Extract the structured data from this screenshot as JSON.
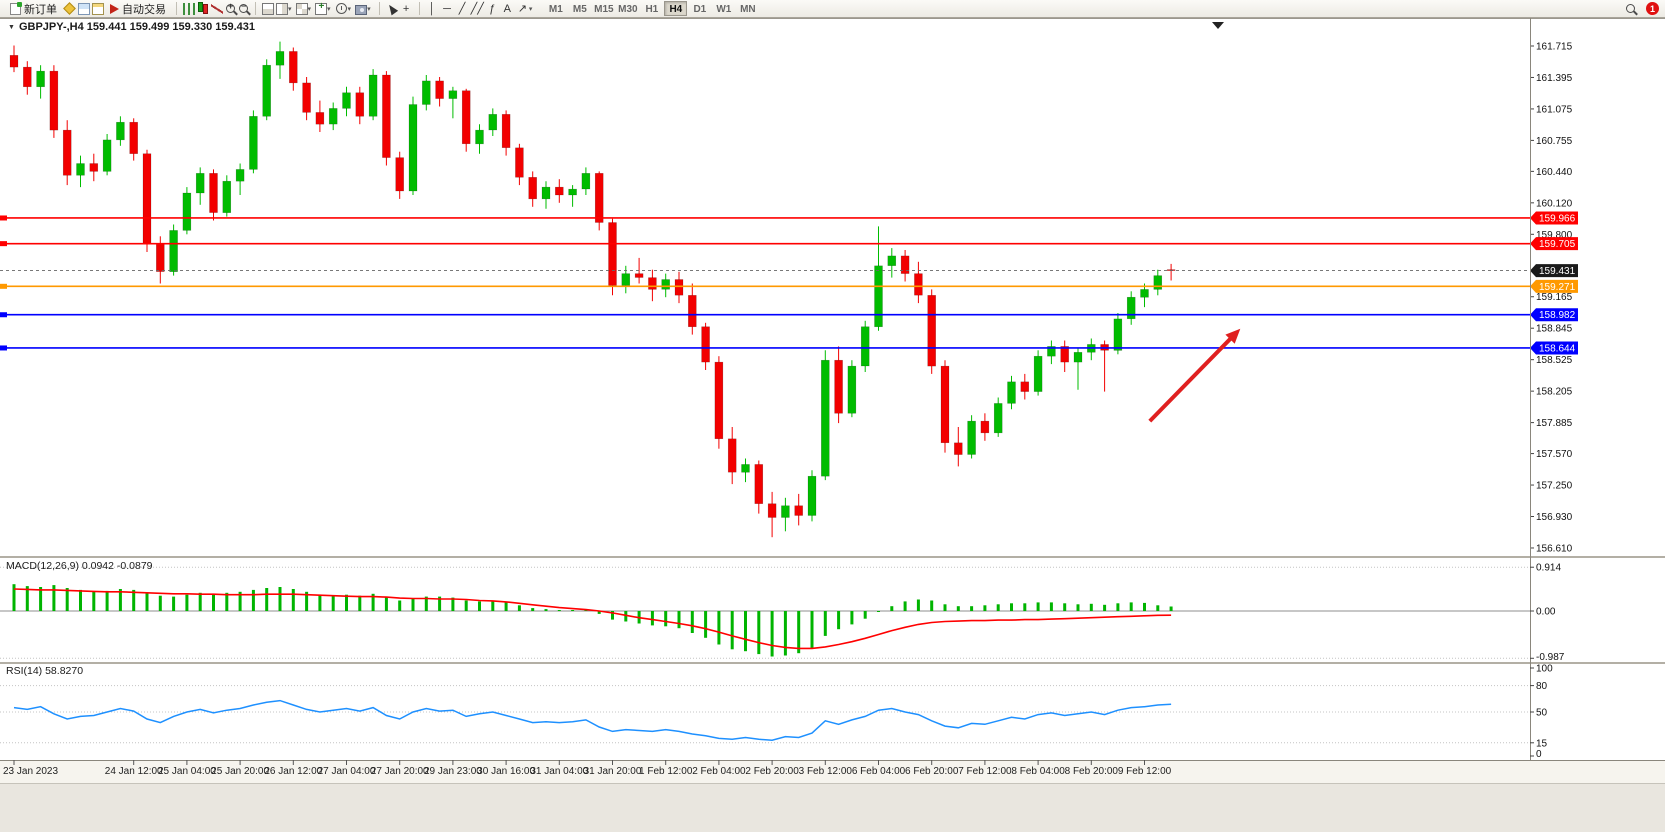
{
  "toolbar": {
    "new_order_label": "新订单",
    "autotrading_label": "自动交易",
    "timeframes": [
      "M1",
      "M5",
      "M15",
      "M30",
      "H1",
      "H4",
      "D1",
      "W1",
      "MN"
    ],
    "active_timeframe": "H4",
    "notification_count": "1"
  },
  "icons": {
    "collapse_triangle": "▼",
    "dropdown_caret": "▾",
    "crosshair_tool": "+",
    "vline_tool": "│",
    "hline_tool": "─",
    "trendline_tool": "╱",
    "channel_tool": "╱╱",
    "fibonacci_tool": "ƒ",
    "text_tool": "A",
    "arrow_tool": "↗"
  },
  "chart": {
    "title": "GBPJPY-,H4 159.441 159.499 159.330 159.431",
    "symbol": "GBPJPY-",
    "timeframe": "H4",
    "open": "159.441",
    "high": "159.499",
    "low": "159.330",
    "close": "159.431",
    "current_price": "159.431",
    "axis_labels": [
      {
        "text": "161.715",
        "value": 161.715
      },
      {
        "text": "161.395",
        "value": 161.395
      },
      {
        "text": "161.075",
        "value": 161.075
      },
      {
        "text": "160.755",
        "value": 160.755
      },
      {
        "text": "160.440",
        "value": 160.44
      },
      {
        "text": "160.120",
        "value": 160.12
      },
      {
        "text": "159.800",
        "value": 159.8
      },
      {
        "text": "159.165",
        "value": 159.165
      },
      {
        "text": "158.845",
        "value": 158.845
      },
      {
        "text": "158.525",
        "value": 158.525
      },
      {
        "text": "158.205",
        "value": 158.205
      },
      {
        "text": "157.885",
        "value": 157.885
      },
      {
        "text": "157.570",
        "value": 157.57
      },
      {
        "text": "157.250",
        "value": 157.25
      },
      {
        "text": "156.930",
        "value": 156.93
      },
      {
        "text": "156.610",
        "value": 156.61
      }
    ],
    "hlines": [
      {
        "label": "159.966",
        "value": 159.966,
        "color": "#ff0000"
      },
      {
        "label": "159.705",
        "value": 159.705,
        "color": "#ff0000"
      },
      {
        "label": "159.271",
        "value": 159.271,
        "color": "#ff9900"
      },
      {
        "label": "158.982",
        "value": 158.982,
        "color": "#0000ff"
      },
      {
        "label": "158.644",
        "value": 158.644,
        "color": "#0000ff"
      }
    ],
    "arrow": {
      "from_bar": 85.4,
      "from_price": 157.9,
      "to_bar": 92.2,
      "to_price": 158.84,
      "color": "#e02020"
    }
  },
  "chart_data": {
    "type": "candlestick",
    "symbol": "GBPJPY",
    "timeframe": "H4",
    "price_axis_range": [
      156.53,
      161.9
    ],
    "ohlc_candles": [
      [
        161.62,
        161.72,
        161.45,
        161.5
      ],
      [
        161.5,
        161.56,
        161.22,
        161.3
      ],
      [
        161.3,
        161.52,
        161.18,
        161.46
      ],
      [
        161.46,
        161.52,
        160.78,
        160.86
      ],
      [
        160.86,
        160.96,
        160.3,
        160.4
      ],
      [
        160.4,
        160.6,
        160.28,
        160.52
      ],
      [
        160.52,
        160.62,
        160.34,
        160.44
      ],
      [
        160.44,
        160.82,
        160.4,
        160.76
      ],
      [
        160.76,
        161.0,
        160.7,
        160.94
      ],
      [
        160.94,
        160.98,
        160.55,
        160.62
      ],
      [
        160.62,
        160.66,
        159.62,
        159.7
      ],
      [
        159.7,
        159.78,
        159.3,
        159.42
      ],
      [
        159.42,
        159.9,
        159.38,
        159.84
      ],
      [
        159.84,
        160.28,
        159.8,
        160.22
      ],
      [
        160.22,
        160.48,
        160.1,
        160.42
      ],
      [
        160.42,
        160.46,
        159.94,
        160.02
      ],
      [
        160.02,
        160.4,
        159.98,
        160.34
      ],
      [
        160.34,
        160.52,
        160.2,
        160.46
      ],
      [
        160.46,
        161.06,
        160.42,
        161.0
      ],
      [
        161.0,
        161.58,
        160.96,
        161.52
      ],
      [
        161.52,
        161.76,
        161.38,
        161.66
      ],
      [
        161.66,
        161.7,
        161.26,
        161.34
      ],
      [
        161.34,
        161.4,
        160.96,
        161.04
      ],
      [
        161.04,
        161.16,
        160.84,
        160.92
      ],
      [
        160.92,
        161.14,
        160.86,
        161.08
      ],
      [
        161.08,
        161.3,
        161.0,
        161.24
      ],
      [
        161.24,
        161.3,
        160.92,
        161.0
      ],
      [
        161.0,
        161.48,
        160.96,
        161.42
      ],
      [
        161.42,
        161.46,
        160.5,
        160.58
      ],
      [
        160.58,
        160.64,
        160.16,
        160.24
      ],
      [
        160.24,
        161.2,
        160.2,
        161.12
      ],
      [
        161.12,
        161.42,
        161.06,
        161.36
      ],
      [
        161.36,
        161.4,
        161.1,
        161.18
      ],
      [
        161.18,
        161.3,
        160.98,
        161.26
      ],
      [
        161.26,
        161.28,
        160.64,
        160.72
      ],
      [
        160.72,
        160.92,
        160.62,
        160.86
      ],
      [
        160.86,
        161.08,
        160.8,
        161.02
      ],
      [
        161.02,
        161.06,
        160.6,
        160.68
      ],
      [
        160.68,
        160.72,
        160.3,
        160.38
      ],
      [
        160.38,
        160.44,
        160.08,
        160.16
      ],
      [
        160.16,
        160.34,
        160.06,
        160.28
      ],
      [
        160.28,
        160.36,
        160.12,
        160.2
      ],
      [
        160.2,
        160.3,
        160.08,
        160.26
      ],
      [
        160.26,
        160.48,
        160.2,
        160.42
      ],
      [
        160.42,
        160.44,
        159.84,
        159.92
      ],
      [
        159.92,
        159.96,
        159.18,
        159.28
      ],
      [
        159.28,
        159.48,
        159.2,
        159.4
      ],
      [
        159.4,
        159.56,
        159.3,
        159.36
      ],
      [
        159.36,
        159.44,
        159.12,
        159.24
      ],
      [
        159.24,
        159.4,
        159.16,
        159.34
      ],
      [
        159.34,
        159.42,
        159.1,
        159.18
      ],
      [
        159.18,
        159.3,
        158.78,
        158.86
      ],
      [
        158.86,
        158.9,
        158.42,
        158.5
      ],
      [
        158.5,
        158.56,
        157.62,
        157.72
      ],
      [
        157.72,
        157.84,
        157.26,
        157.38
      ],
      [
        157.38,
        157.52,
        157.28,
        157.46
      ],
      [
        157.46,
        157.5,
        156.96,
        157.06
      ],
      [
        157.06,
        157.18,
        156.72,
        156.92
      ],
      [
        156.92,
        157.12,
        156.78,
        157.04
      ],
      [
        157.04,
        157.16,
        156.84,
        156.94
      ],
      [
        156.94,
        157.4,
        156.88,
        157.34
      ],
      [
        157.34,
        158.62,
        157.3,
        158.52
      ],
      [
        158.52,
        158.66,
        157.88,
        157.98
      ],
      [
        157.98,
        158.52,
        157.94,
        158.46
      ],
      [
        158.46,
        158.92,
        158.4,
        158.86
      ],
      [
        158.86,
        159.88,
        158.82,
        159.48
      ],
      [
        159.48,
        159.66,
        159.36,
        159.58
      ],
      [
        159.58,
        159.64,
        159.32,
        159.4
      ],
      [
        159.4,
        159.52,
        159.1,
        159.18
      ],
      [
        159.18,
        159.24,
        158.38,
        158.46
      ],
      [
        158.46,
        158.52,
        157.58,
        157.68
      ],
      [
        157.68,
        157.84,
        157.44,
        157.56
      ],
      [
        157.56,
        157.96,
        157.52,
        157.9
      ],
      [
        157.9,
        157.98,
        157.7,
        157.78
      ],
      [
        157.78,
        158.14,
        157.74,
        158.08
      ],
      [
        158.08,
        158.36,
        158.02,
        158.3
      ],
      [
        158.3,
        158.38,
        158.12,
        158.2
      ],
      [
        158.2,
        158.62,
        158.16,
        158.56
      ],
      [
        158.56,
        158.72,
        158.48,
        158.66
      ],
      [
        158.66,
        158.72,
        158.4,
        158.5
      ],
      [
        158.5,
        158.64,
        158.22,
        158.6
      ],
      [
        158.6,
        158.74,
        158.52,
        158.68
      ],
      [
        158.68,
        158.72,
        158.2,
        158.62
      ],
      [
        158.62,
        159.0,
        158.58,
        158.94
      ],
      [
        158.94,
        159.22,
        158.88,
        159.16
      ],
      [
        159.16,
        159.3,
        159.06,
        159.24
      ],
      [
        159.24,
        159.44,
        159.18,
        159.38
      ],
      [
        159.441,
        159.499,
        159.33,
        159.431
      ]
    ],
    "time_labels": [
      {
        "text": "23 Jan 2023",
        "bar": 0
      },
      {
        "text": "24 Jan 12:00",
        "bar": 9
      },
      {
        "text": "25 Jan 04:00",
        "bar": 13
      },
      {
        "text": "25 Jan 20:00",
        "bar": 17
      },
      {
        "text": "26 Jan 12:00",
        "bar": 21
      },
      {
        "text": "27 Jan 04:00",
        "bar": 25
      },
      {
        "text": "27 Jan 20:00",
        "bar": 29
      },
      {
        "text": "29 Jan 23:00",
        "bar": 33
      },
      {
        "text": "30 Jan 16:00",
        "bar": 37
      },
      {
        "text": "31 Jan 04:00",
        "bar": 41
      },
      {
        "text": "31 Jan 20:00",
        "bar": 45
      },
      {
        "text": "1 Feb 12:00",
        "bar": 49
      },
      {
        "text": "2 Feb 04:00",
        "bar": 53
      },
      {
        "text": "2 Feb 20:00",
        "bar": 57
      },
      {
        "text": "3 Feb 12:00",
        "bar": 61
      },
      {
        "text": "6 Feb 04:00",
        "bar": 65
      },
      {
        "text": "6 Feb 20:00",
        "bar": 69
      },
      {
        "text": "7 Feb 12:00",
        "bar": 73
      },
      {
        "text": "8 Feb 04:00",
        "bar": 77
      },
      {
        "text": "8 Feb 20:00",
        "bar": 81
      },
      {
        "text": "9 Feb 12:00",
        "bar": 85
      }
    ]
  },
  "macd": {
    "label": "MACD(12,26,9) 0.0942 -0.0879",
    "name": "MACD(12,26,9)",
    "main_value": "0.0942",
    "signal_value": "-0.0879",
    "axis": [
      {
        "text": "0.914",
        "value": 0.914
      },
      {
        "text": "0.00",
        "value": 0
      },
      {
        "text": "-0.987",
        "value": -0.987
      }
    ],
    "histogram": [
      0.56,
      0.52,
      0.5,
      0.54,
      0.48,
      0.44,
      0.4,
      0.42,
      0.46,
      0.44,
      0.38,
      0.32,
      0.3,
      0.34,
      0.38,
      0.36,
      0.38,
      0.4,
      0.44,
      0.48,
      0.5,
      0.46,
      0.4,
      0.34,
      0.32,
      0.34,
      0.32,
      0.36,
      0.3,
      0.22,
      0.26,
      0.3,
      0.3,
      0.28,
      0.22,
      0.2,
      0.22,
      0.18,
      0.12,
      0.06,
      0.04,
      0.02,
      0.02,
      0.04,
      -0.06,
      -0.18,
      -0.22,
      -0.26,
      -0.3,
      -0.32,
      -0.36,
      -0.46,
      -0.56,
      -0.7,
      -0.8,
      -0.84,
      -0.9,
      -0.95,
      -0.93,
      -0.88,
      -0.78,
      -0.52,
      -0.38,
      -0.28,
      -0.16,
      -0.02,
      0.1,
      0.2,
      0.24,
      0.22,
      0.14,
      0.1,
      0.1,
      0.12,
      0.14,
      0.16,
      0.16,
      0.18,
      0.18,
      0.16,
      0.14,
      0.15,
      0.13,
      0.16,
      0.18,
      0.17,
      0.12,
      0.094
    ],
    "signal": [
      0.46,
      0.45,
      0.44,
      0.44,
      0.43,
      0.42,
      0.41,
      0.4,
      0.4,
      0.39,
      0.38,
      0.37,
      0.36,
      0.36,
      0.35,
      0.35,
      0.34,
      0.34,
      0.34,
      0.35,
      0.35,
      0.35,
      0.34,
      0.33,
      0.32,
      0.31,
      0.3,
      0.3,
      0.29,
      0.27,
      0.26,
      0.26,
      0.25,
      0.25,
      0.24,
      0.22,
      0.21,
      0.19,
      0.16,
      0.13,
      0.1,
      0.07,
      0.05,
      0.03,
      0.0,
      -0.04,
      -0.09,
      -0.14,
      -0.18,
      -0.22,
      -0.26,
      -0.31,
      -0.37,
      -0.44,
      -0.52,
      -0.59,
      -0.66,
      -0.72,
      -0.76,
      -0.78,
      -0.78,
      -0.75,
      -0.7,
      -0.64,
      -0.57,
      -0.49,
      -0.41,
      -0.34,
      -0.28,
      -0.24,
      -0.22,
      -0.21,
      -0.2,
      -0.2,
      -0.19,
      -0.19,
      -0.18,
      -0.18,
      -0.17,
      -0.16,
      -0.15,
      -0.14,
      -0.13,
      -0.12,
      -0.11,
      -0.1,
      -0.09,
      -0.088
    ]
  },
  "rsi": {
    "label": "RSI(14) 58.8270",
    "name": "RSI(14)",
    "value": "58.8270",
    "axis": [
      {
        "text": "100",
        "value": 100
      },
      {
        "text": "80",
        "value": 80
      },
      {
        "text": "50",
        "value": 50
      },
      {
        "text": "15",
        "value": 15
      },
      {
        "text": "0",
        "value": 0
      }
    ],
    "levels": [
      80,
      50,
      15
    ],
    "values": [
      55,
      53,
      56,
      48,
      42,
      45,
      46,
      50,
      54,
      51,
      42,
      38,
      45,
      50,
      53,
      49,
      52,
      54,
      58,
      61,
      63,
      58,
      53,
      50,
      52,
      54,
      51,
      55,
      46,
      42,
      50,
      54,
      51,
      52,
      45,
      48,
      50,
      46,
      42,
      38,
      39,
      38,
      39,
      41,
      33,
      28,
      30,
      29,
      28,
      30,
      28,
      25,
      23,
      20,
      19,
      21,
      19,
      18,
      22,
      21,
      26,
      40,
      36,
      41,
      45,
      52,
      54,
      50,
      47,
      40,
      34,
      32,
      37,
      36,
      40,
      44,
      42,
      47,
      49,
      46,
      48,
      50,
      47,
      52,
      55,
      56,
      58,
      58.83
    ]
  },
  "colors": {
    "candle_up": "#00bc00",
    "candle_down": "#f20000",
    "line_red": "#ff0000",
    "line_orange": "#ff9900",
    "line_blue": "#0000ff",
    "current_price_tag": "#1a1a1a",
    "macd_histogram": "#00b400",
    "macd_signal": "#ff0000",
    "rsi_line": "#1e90ff",
    "arrow": "#e02020"
  }
}
